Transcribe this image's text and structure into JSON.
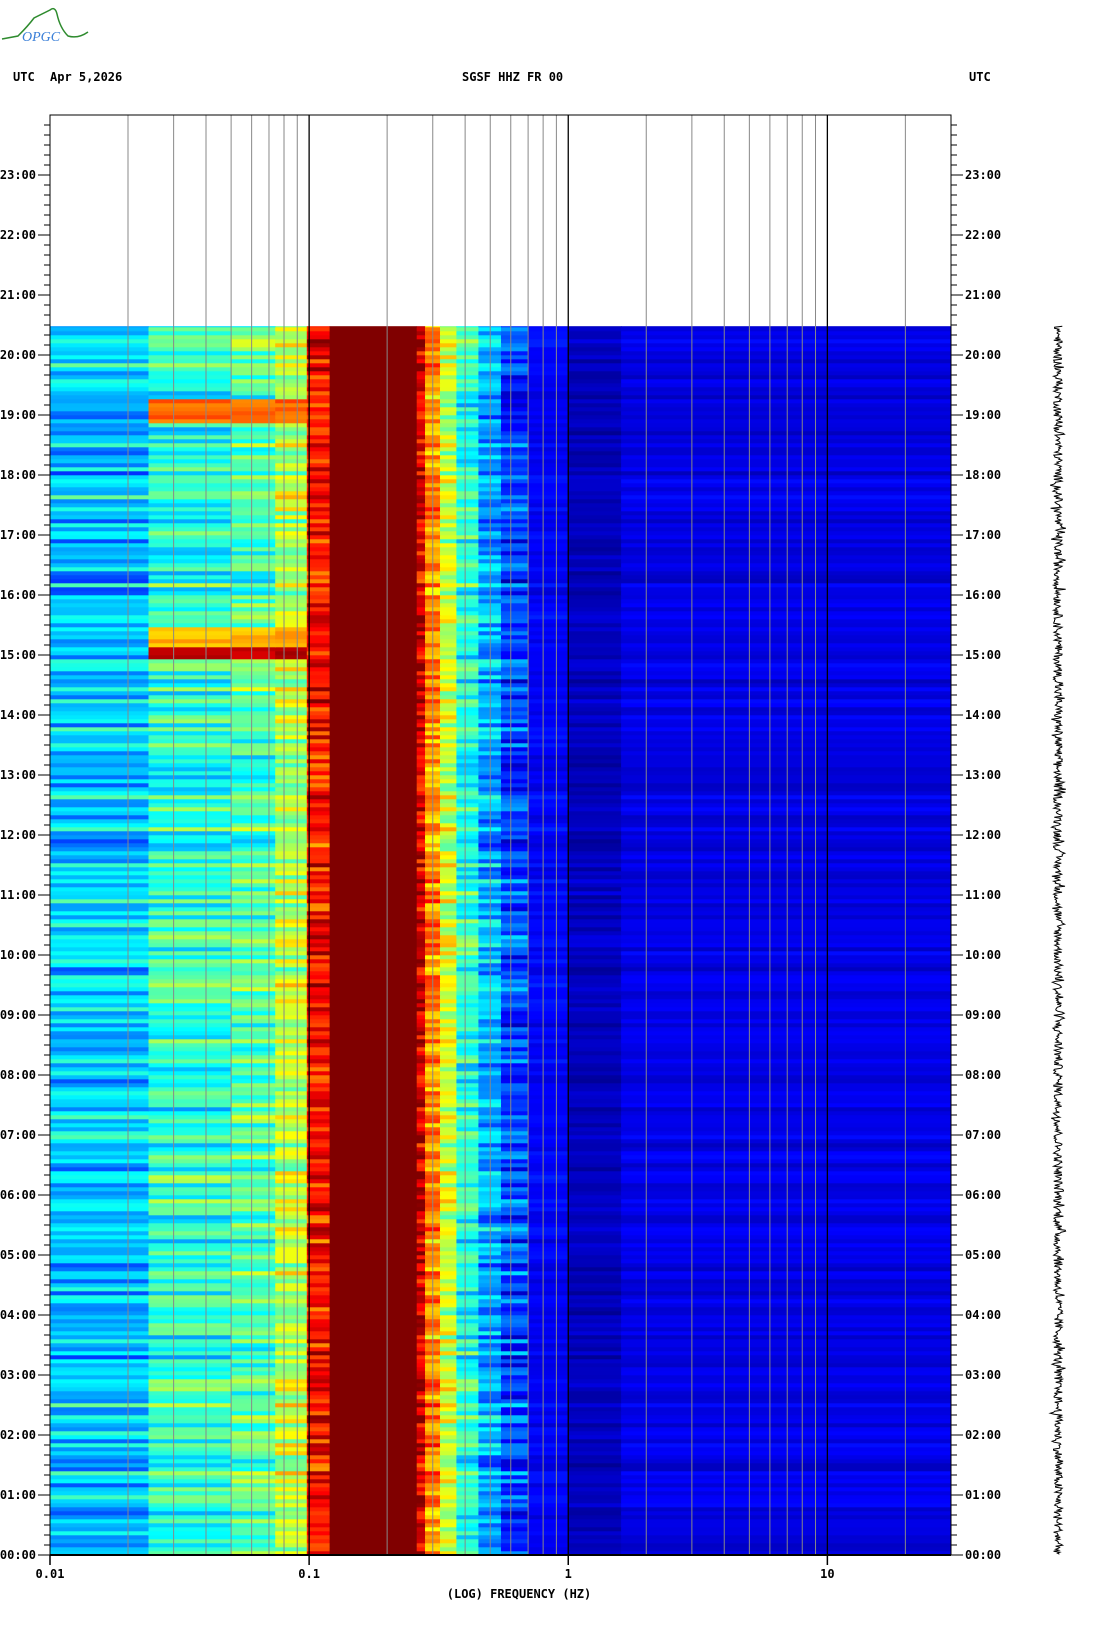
{
  "logo": {
    "text": "OPGC",
    "colors": {
      "text": "#3a7fd8",
      "curve": "#2e8b2e"
    }
  },
  "header": {
    "left_tz": "UTC",
    "date": "Apr 5,2026",
    "station": "SGSF HHZ FR 00",
    "right_tz": "UTC"
  },
  "chart_data": {
    "type": "heatmap",
    "title": "SGSF HHZ FR 00",
    "xlabel": "(LOG) FREQUENCY (HZ)",
    "x_scale": "log",
    "xlim": [
      0.01,
      30
    ],
    "x_tick_labels": [
      "0.01",
      "0.1",
      "1",
      "10"
    ],
    "x_major_gridlines": [
      0.1,
      1,
      10
    ],
    "x_minor_gridlines": [
      0.02,
      0.03,
      0.04,
      0.05,
      0.06,
      0.07,
      0.08,
      0.09,
      0.2,
      0.3,
      0.4,
      0.5,
      0.6,
      0.7,
      0.8,
      0.9,
      2,
      3,
      4,
      5,
      6,
      7,
      8,
      9,
      20
    ],
    "ylabel": "UTC",
    "ylim_hours": [
      0,
      24
    ],
    "y_tick_labels": [
      "00:00",
      "01:00",
      "02:00",
      "03:00",
      "04:00",
      "05:00",
      "06:00",
      "07:00",
      "08:00",
      "09:00",
      "10:00",
      "11:00",
      "12:00",
      "13:00",
      "14:00",
      "15:00",
      "16:00",
      "17:00",
      "18:00",
      "19:00",
      "20:00",
      "21:00",
      "22:00",
      "23:00"
    ],
    "data_end_hour": 20.48,
    "colormap": "jet",
    "frequency_bands": [
      {
        "f_lo": 0.01,
        "f_hi": 0.024,
        "level": 0.33
      },
      {
        "f_lo": 0.024,
        "f_hi": 0.05,
        "level": 0.42
      },
      {
        "f_lo": 0.05,
        "f_hi": 0.074,
        "level": 0.46
      },
      {
        "f_lo": 0.074,
        "f_hi": 0.098,
        "level": 0.56
      },
      {
        "f_lo": 0.098,
        "f_hi": 0.12,
        "level": 0.86
      },
      {
        "f_lo": 0.12,
        "f_hi": 0.26,
        "level": 1.0
      },
      {
        "f_lo": 0.26,
        "f_hi": 0.28,
        "level": 0.92
      },
      {
        "f_lo": 0.28,
        "f_hi": 0.32,
        "level": 0.74
      },
      {
        "f_lo": 0.32,
        "f_hi": 0.37,
        "level": 0.58
      },
      {
        "f_lo": 0.37,
        "f_hi": 0.45,
        "level": 0.42
      },
      {
        "f_lo": 0.45,
        "f_hi": 0.55,
        "level": 0.3
      },
      {
        "f_lo": 0.55,
        "f_hi": 0.7,
        "level": 0.2
      },
      {
        "f_lo": 0.7,
        "f_hi": 1.0,
        "level": 0.12
      },
      {
        "f_lo": 1.0,
        "f_hi": 1.6,
        "level": 0.06
      },
      {
        "f_lo": 1.6,
        "f_hi": 30,
        "level": 0.1
      }
    ],
    "events": [
      {
        "start_hour": 18.9,
        "end_hour": 19.25,
        "f_lo": 0.024,
        "f_hi": 0.098,
        "level": 0.78
      },
      {
        "start_hour": 14.95,
        "end_hour": 15.15,
        "f_lo": 0.024,
        "f_hi": 0.098,
        "level": 0.93
      },
      {
        "start_hour": 15.15,
        "end_hour": 15.45,
        "f_lo": 0.024,
        "f_hi": 0.098,
        "level": 0.7
      }
    ]
  }
}
